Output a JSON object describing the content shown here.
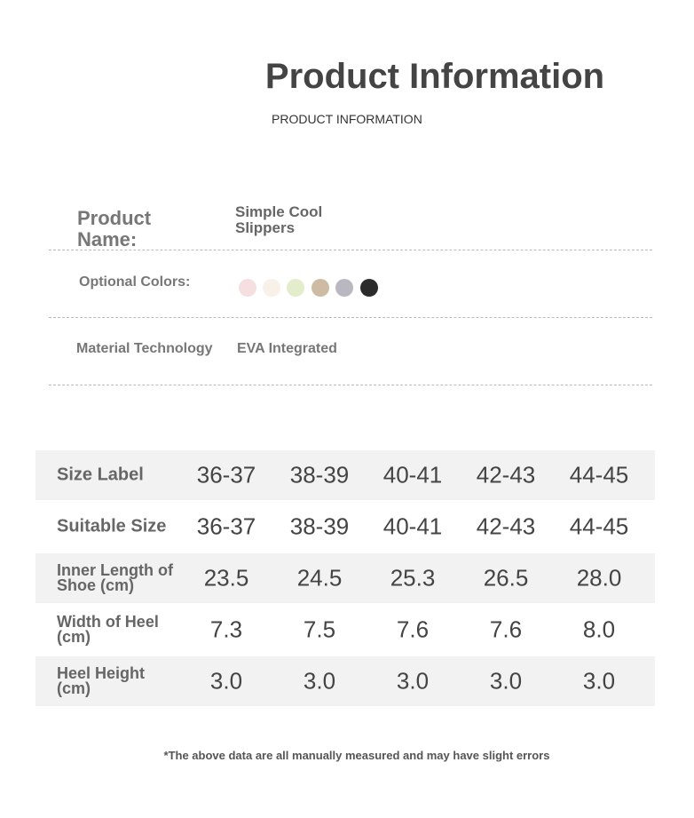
{
  "header": {
    "title": "Product Information",
    "subtitle": "PRODUCT INFORMATION"
  },
  "info": {
    "name_label": "Product Name:",
    "name_value": "Simple Cool Slippers",
    "colors_label": "Optional Colors:",
    "material_label": "Material Technology",
    "material_value": "EVA Integrated"
  },
  "table": {
    "rows": [
      [
        "Size Label",
        "36-37",
        "38-39",
        "40-41",
        "42-43",
        "44-45"
      ],
      [
        "Suitable Size",
        "36-37",
        "38-39",
        "40-41",
        "42-43",
        "44-45"
      ],
      [
        "Inner Length of Shoe (cm)",
        "23.5",
        "24.5",
        "25.3",
        "26.5",
        "28.0"
      ],
      [
        "Width of Heel (cm)",
        "7.3",
        "7.5",
        "7.6",
        "7.6",
        "8.0"
      ],
      [
        "Heel Height (cm)",
        "3.0",
        "3.0",
        "3.0",
        "3.0",
        "3.0"
      ]
    ]
  },
  "footnote": "*The above data are all manually measured and may have slight errors"
}
